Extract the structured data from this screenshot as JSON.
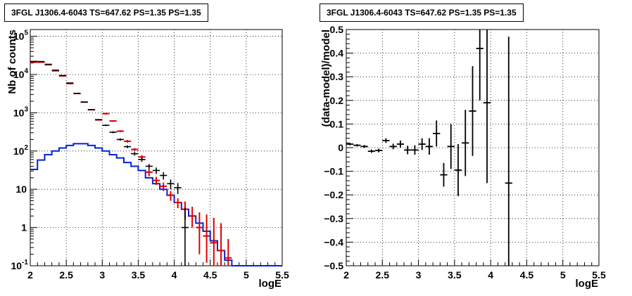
{
  "chart_data": [
    {
      "type": "step-histogram-with-errorbars",
      "title": "3FGL J1306.4-6043 TS=647.62 PS=1.35 PS=1.35",
      "xlabel": "logE",
      "ylabel": "Nb of counts",
      "xlim": [
        2,
        5.5
      ],
      "ylim": [
        0.1,
        150000
      ],
      "yscale": "log",
      "grid": true,
      "x_ticks": [
        "2",
        "2.5",
        "3",
        "3.5",
        "4",
        "4.5",
        "5",
        "5.5"
      ],
      "y_ticks": [
        "10^{-1}",
        "1",
        "10",
        "10^{2}",
        "10^{3}",
        "10^{4}",
        "10^{5}"
      ],
      "colors": {
        "data": "#000000",
        "total_model": "#dd0000",
        "source_model": "#0022dd"
      },
      "series": [
        {
          "role": "data",
          "points": [
            {
              "x": 2.05,
              "y": 22000,
              "lo": 21700,
              "hi": 22300
            },
            {
              "x": 2.15,
              "y": 21800,
              "lo": 21500,
              "hi": 22100
            },
            {
              "x": 2.25,
              "y": 18500,
              "lo": 18200,
              "hi": 18800
            },
            {
              "x": 2.35,
              "y": 13000,
              "lo": 12800,
              "hi": 13200
            },
            {
              "x": 2.45,
              "y": 9400,
              "lo": 9200,
              "hi": 9600
            },
            {
              "x": 2.55,
              "y": 6000,
              "lo": 5850,
              "hi": 6150
            },
            {
              "x": 2.65,
              "y": 3200,
              "lo": 3100,
              "hi": 3300
            },
            {
              "x": 2.75,
              "y": 1900,
              "lo": 1840,
              "hi": 1960
            },
            {
              "x": 2.85,
              "y": 1200,
              "lo": 1160,
              "hi": 1240
            },
            {
              "x": 2.95,
              "y": 660,
              "lo": 635,
              "hi": 685
            },
            {
              "x": 3.05,
              "y": 470,
              "lo": 448,
              "hi": 492
            },
            {
              "x": 3.15,
              "y": 310,
              "lo": 292,
              "hi": 328
            },
            {
              "x": 3.25,
              "y": 200,
              "lo": 186,
              "hi": 214
            },
            {
              "x": 3.35,
              "y": 130,
              "lo": 119,
              "hi": 141
            },
            {
              "x": 3.45,
              "y": 85,
              "lo": 76,
              "hi": 94
            },
            {
              "x": 3.55,
              "y": 60,
              "lo": 52,
              "hi": 68
            },
            {
              "x": 3.65,
              "y": 40,
              "lo": 34,
              "hi": 46
            },
            {
              "x": 3.75,
              "y": 31,
              "lo": 25,
              "hi": 37
            },
            {
              "x": 3.85,
              "y": 23,
              "lo": 18,
              "hi": 28
            },
            {
              "x": 3.95,
              "y": 14,
              "lo": 10,
              "hi": 18
            },
            {
              "x": 4.05,
              "y": 11,
              "lo": 7.5,
              "hi": 14.5
            },
            {
              "x": 4.15,
              "y": 1,
              "lo": 0.1,
              "hi": 3.3
            }
          ]
        },
        {
          "role": "total_model",
          "points": [
            {
              "x": 2.05,
              "y": 21000
            },
            {
              "x": 2.15,
              "y": 21000
            },
            {
              "x": 2.25,
              "y": 18000
            },
            {
              "x": 2.35,
              "y": 12500
            },
            {
              "x": 2.45,
              "y": 9200
            },
            {
              "x": 2.55,
              "y": 5800
            },
            {
              "x": 2.65,
              "y": 3200
            },
            {
              "x": 2.75,
              "y": 1900
            },
            {
              "x": 2.85,
              "y": 1200
            },
            {
              "x": 2.95,
              "y": 650
            },
            {
              "x": 3.05,
              "y": 950,
              "lo": 900,
              "hi": 1000
            },
            {
              "x": 3.15,
              "y": 610,
              "lo": 580,
              "hi": 640
            },
            {
              "x": 3.25,
              "y": 330,
              "lo": 310,
              "hi": 350
            },
            {
              "x": 3.35,
              "y": 180,
              "lo": 165,
              "hi": 195
            },
            {
              "x": 3.45,
              "y": 110,
              "lo": 100,
              "hi": 120
            },
            {
              "x": 3.55,
              "y": 70,
              "lo": 62,
              "hi": 78
            },
            {
              "x": 3.65,
              "y": 28,
              "lo": 22,
              "hi": 34
            },
            {
              "x": 3.75,
              "y": 17,
              "lo": 13,
              "hi": 21
            },
            {
              "x": 3.85,
              "y": 12,
              "lo": 9,
              "hi": 15
            },
            {
              "x": 3.95,
              "y": 7,
              "lo": 5,
              "hi": 9
            },
            {
              "x": 4.05,
              "y": 4.5,
              "lo": 3.2,
              "hi": 5.8
            },
            {
              "x": 4.15,
              "y": 3,
              "lo": 1.6,
              "hi": 4.8
            },
            {
              "x": 4.25,
              "y": 2,
              "lo": 1,
              "hi": 3.5
            },
            {
              "x": 4.35,
              "y": 1,
              "lo": 0.2,
              "hi": 2.5
            },
            {
              "x": 4.45,
              "y": 0.6,
              "lo": 0.12,
              "hi": 2.2
            },
            {
              "x": 4.55,
              "y": 0.4,
              "lo": 0.1,
              "hi": 1.8
            },
            {
              "x": 4.65,
              "y": 0.25,
              "lo": 0.1,
              "hi": 1.3
            },
            {
              "x": 4.75,
              "y": 0.16,
              "lo": 0.1,
              "hi": 0.5
            }
          ]
        },
        {
          "role": "source_model",
          "bins": [
            {
              "x0": 2.0,
              "x1": 2.1,
              "y": 33
            },
            {
              "x0": 2.1,
              "x1": 2.2,
              "y": 58
            },
            {
              "x0": 2.2,
              "x1": 2.3,
              "y": 80
            },
            {
              "x0": 2.3,
              "x1": 2.4,
              "y": 100
            },
            {
              "x0": 2.4,
              "x1": 2.5,
              "y": 120
            },
            {
              "x0": 2.5,
              "x1": 2.6,
              "y": 140
            },
            {
              "x0": 2.6,
              "x1": 2.7,
              "y": 155
            },
            {
              "x0": 2.7,
              "x1": 2.8,
              "y": 155
            },
            {
              "x0": 2.8,
              "x1": 2.9,
              "y": 140
            },
            {
              "x0": 2.9,
              "x1": 3.0,
              "y": 120
            },
            {
              "x0": 3.0,
              "x1": 3.1,
              "y": 100
            },
            {
              "x0": 3.1,
              "x1": 3.2,
              "y": 80
            },
            {
              "x0": 3.2,
              "x1": 3.3,
              "y": 66
            },
            {
              "x0": 3.3,
              "x1": 3.4,
              "y": 50
            },
            {
              "x0": 3.4,
              "x1": 3.5,
              "y": 40
            },
            {
              "x0": 3.5,
              "x1": 3.6,
              "y": 31
            },
            {
              "x0": 3.6,
              "x1": 3.7,
              "y": 20
            },
            {
              "x0": 3.7,
              "x1": 3.8,
              "y": 14
            },
            {
              "x0": 3.8,
              "x1": 3.9,
              "y": 10
            },
            {
              "x0": 3.9,
              "x1": 4.0,
              "y": 7
            },
            {
              "x0": 4.0,
              "x1": 4.1,
              "y": 4.5
            },
            {
              "x0": 4.1,
              "x1": 4.2,
              "y": 3
            },
            {
              "x0": 4.2,
              "x1": 4.3,
              "y": 2
            },
            {
              "x0": 4.3,
              "x1": 4.4,
              "y": 1.3
            },
            {
              "x0": 4.4,
              "x1": 4.5,
              "y": 0.8
            },
            {
              "x0": 4.5,
              "x1": 4.6,
              "y": 0.45
            },
            {
              "x0": 4.6,
              "x1": 4.7,
              "y": 0.25
            },
            {
              "x0": 4.7,
              "x1": 4.8,
              "y": 0.14
            },
            {
              "x0": 4.8,
              "x1": 5.5,
              "y": 0.1
            }
          ]
        }
      ]
    },
    {
      "type": "errorbar",
      "title": "3FGL J1306.4-6043 TS=647.62 PS=1.35 PS=1.35",
      "xlabel": "logE",
      "ylabel": "(data-model)/model",
      "xlim": [
        2,
        5.5
      ],
      "ylim": [
        -0.5,
        0.5
      ],
      "grid": true,
      "x_ticks": [
        "2",
        "2.5",
        "3",
        "3.5",
        "4",
        "4.5",
        "5",
        "5.5"
      ],
      "y_ticks": [
        "−0.5",
        "−0.4",
        "−0.3",
        "−0.2",
        "−0.1",
        "0",
        "0.1",
        "0.2",
        "0.3",
        "0.4",
        "0.5"
      ],
      "color": "#000000",
      "points": [
        {
          "x": 2.05,
          "y": 0.015,
          "err": 0.005
        },
        {
          "x": 2.15,
          "y": 0.01,
          "err": 0.005
        },
        {
          "x": 2.25,
          "y": 0.005,
          "err": 0.006
        },
        {
          "x": 2.35,
          "y": -0.015,
          "err": 0.007
        },
        {
          "x": 2.45,
          "y": -0.012,
          "err": 0.008
        },
        {
          "x": 2.55,
          "y": 0.03,
          "err": 0.01
        },
        {
          "x": 2.65,
          "y": 0.005,
          "err": 0.012
        },
        {
          "x": 2.75,
          "y": 0.015,
          "err": 0.015
        },
        {
          "x": 2.85,
          "y": -0.01,
          "err": 0.018
        },
        {
          "x": 2.95,
          "y": -0.01,
          "err": 0.02
        },
        {
          "x": 3.05,
          "y": 0.015,
          "err": 0.025
        },
        {
          "x": 3.15,
          "y": 0.005,
          "err": 0.035
        },
        {
          "x": 3.25,
          "y": 0.06,
          "err": 0.055
        },
        {
          "x": 3.35,
          "y": -0.115,
          "err": 0.05
        },
        {
          "x": 3.45,
          "y": 0.005,
          "err": 0.095
        },
        {
          "x": 3.55,
          "y": -0.095,
          "err": 0.11
        },
        {
          "x": 3.65,
          "y": 0.02,
          "err": 0.14
        },
        {
          "x": 3.75,
          "y": 0.155,
          "err": 0.19
        },
        {
          "x": 3.85,
          "y": 0.42,
          "err": 0.22
        },
        {
          "x": 3.95,
          "y": 0.19,
          "err": 0.34
        },
        {
          "x": 4.25,
          "y": -0.15,
          "err": 0.62
        }
      ]
    }
  ]
}
